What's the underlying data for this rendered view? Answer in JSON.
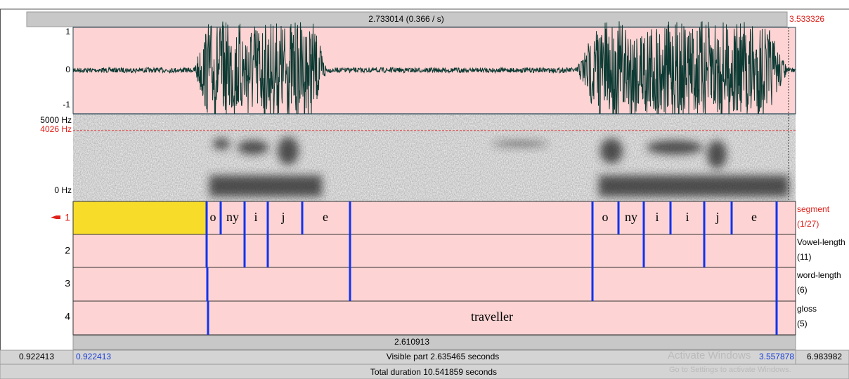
{
  "header": {
    "selection_duration": "2.733014 (0.366 / s)",
    "selection_end": "3.533326"
  },
  "waveform": {
    "axis": [
      "1",
      "0",
      "-1"
    ]
  },
  "spectrogram": {
    "max": "5000 Hz",
    "cursor": "4026 Hz",
    "min": "0 Hz"
  },
  "tiers": [
    {
      "number": "1",
      "name": "segment",
      "count": "(1/27)",
      "labels": [
        "o",
        "ny",
        "i",
        "j",
        "e",
        "o",
        "ny",
        "i",
        "i",
        "j",
        "e"
      ]
    },
    {
      "number": "2",
      "name": "Vowel-length",
      "count": "(11)"
    },
    {
      "number": "3",
      "name": "word-length",
      "count": "(6)"
    },
    {
      "number": "4",
      "name": "gloss",
      "count": "(5)",
      "labels": [
        "traveller"
      ]
    }
  ],
  "footer": {
    "selection": "2.610913",
    "window_start": "0.922413",
    "visible_start": "0.922413",
    "visible_part": "Visible part 2.635465 seconds",
    "visible_end": "3.557878",
    "window_end": "6.983982",
    "total_duration": "Total duration 10.541859 seconds"
  },
  "watermark": {
    "title": "Activate Windows",
    "subtitle": "Go to Settings to activate Windows."
  }
}
